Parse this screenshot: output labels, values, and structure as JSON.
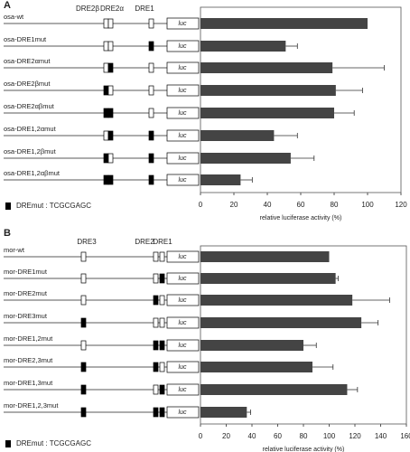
{
  "chart_data": [
    {
      "type": "bar",
      "orientation": "horizontal",
      "panel_label": "A",
      "categories": [
        "osa-wt",
        "osa-DRE1mut",
        "osa-DRE2αmut",
        "osa-DRE2βmut",
        "osa-DRE2αβmut",
        "osa-DRE1,2αmut",
        "osa-DRE1,2βmut",
        "osa-DRE1,2αβmut"
      ],
      "series": [
        {
          "color": "#444444",
          "values": [
            100,
            51,
            79,
            81,
            80,
            44,
            54,
            24
          ],
          "errors": [
            null,
            7,
            31,
            16,
            12,
            14,
            14,
            7
          ]
        }
      ],
      "xlim": [
        0,
        120
      ],
      "xticks": [
        0,
        20,
        40,
        60,
        80,
        100,
        120
      ],
      "xlabel": "relative luciferase activity (%)"
    },
    {
      "type": "bar",
      "orientation": "horizontal",
      "panel_label": "B",
      "categories": [
        "mor-wt",
        "mor-DRE1mut",
        "mor-DRE2mut",
        "mor-DRE3mut",
        "mor-DRE1,2mut",
        "mor-DRE2,3mut",
        "mor-DRE1,3mut",
        "mor-DRE1,2,3mut"
      ],
      "series": [
        {
          "color": "#444444",
          "values": [
            100,
            105,
            118,
            125,
            80,
            87,
            114,
            36
          ],
          "errors": [
            null,
            2,
            29,
            13,
            10,
            16,
            8,
            3
          ]
        }
      ],
      "xlim": [
        0,
        160
      ],
      "xticks": [
        0,
        20,
        40,
        60,
        80,
        100,
        120,
        140,
        160
      ],
      "xlabel": "relative luciferase activity (%)"
    }
  ],
  "diagrams": [
    {
      "element_labels": [
        "DRE2β",
        "DRE2α",
        "DRE1"
      ],
      "reporter": "luc",
      "legend": "DREmut : TCGCGAGC"
    },
    {
      "element_labels": [
        "DRE3",
        "DRE2",
        "DRE1"
      ],
      "reporter": "luc",
      "legend": "DREmut : TCGCGAGC"
    }
  ]
}
